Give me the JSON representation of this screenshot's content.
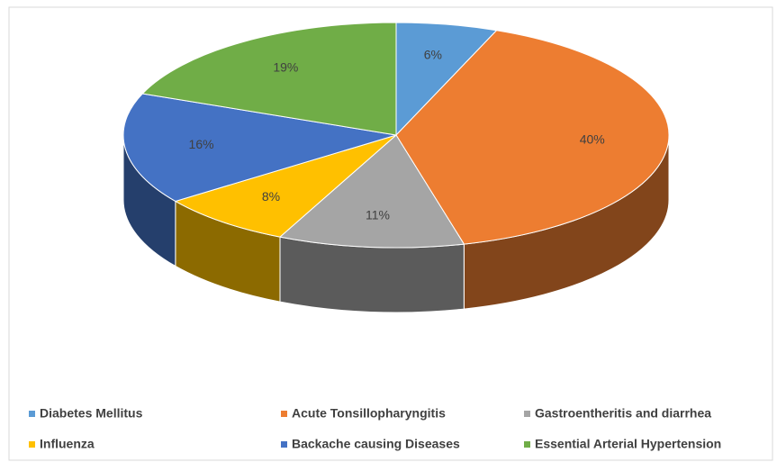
{
  "chart_data": {
    "type": "pie3d",
    "categories": [
      "Diabetes Mellitus",
      "Acute Tonsillopharyngitis",
      "Gastroentheritis and diarrhea",
      "Influenza",
      "Backache causing Diseases",
      "Essential Arterial Hypertension"
    ],
    "values": [
      6,
      40,
      11,
      8,
      16,
      19
    ],
    "value_labels": [
      "6%",
      "40%",
      "11%",
      "8%",
      "16%",
      "19%"
    ],
    "colors": [
      "#5b9bd5",
      "#ed7d31",
      "#a5a5a5",
      "#ffc000",
      "#4472c4",
      "#70ad47"
    ],
    "legend": "bottom"
  }
}
